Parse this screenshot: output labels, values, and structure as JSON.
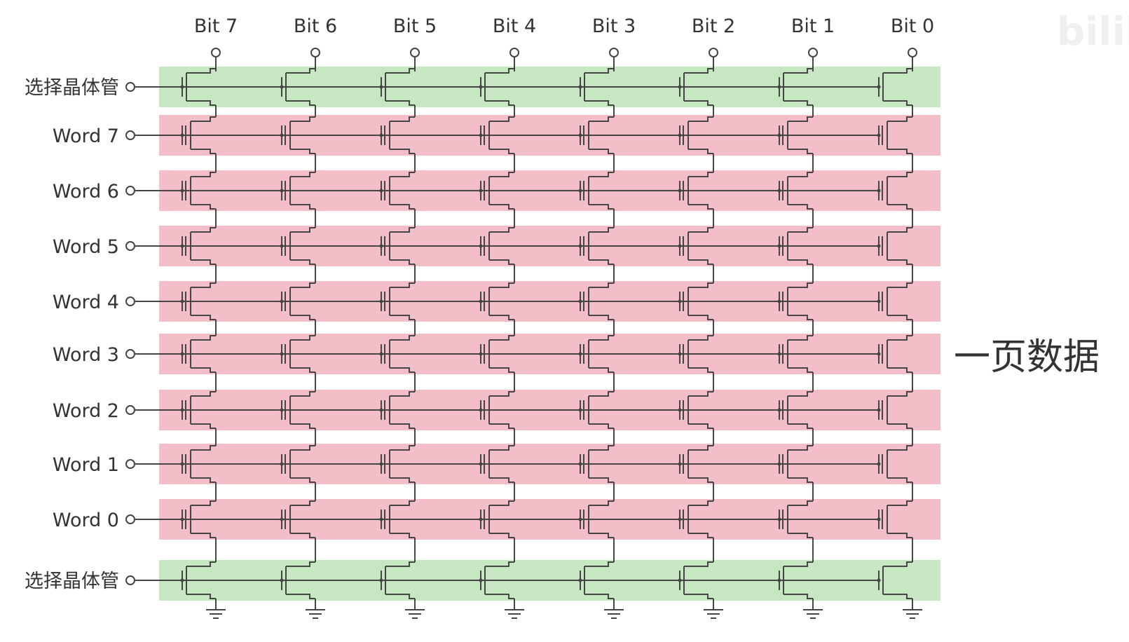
{
  "bit_lines": [
    "Bit 7",
    "Bit 6",
    "Bit 5",
    "Bit 4",
    "Bit 3",
    "Bit 2",
    "Bit 1",
    "Bit 0"
  ],
  "rows": [
    {
      "label": "选择晶体管",
      "kind": "select"
    },
    {
      "label": "Word 7",
      "kind": "word"
    },
    {
      "label": "Word 6",
      "kind": "word"
    },
    {
      "label": "Word 5",
      "kind": "word"
    },
    {
      "label": "Word 4",
      "kind": "word"
    },
    {
      "label": "Word 3",
      "kind": "word"
    },
    {
      "label": "Word 2",
      "kind": "word"
    },
    {
      "label": "Word 1",
      "kind": "word"
    },
    {
      "label": "Word 0",
      "kind": "word"
    },
    {
      "label": "选择晶体管",
      "kind": "select"
    }
  ],
  "side_label": "一页数据",
  "watermark": "bilibili",
  "colors": {
    "select_band": "#c7e6c2",
    "word_band": "#f3bec7",
    "wire": "#454545",
    "text": "#333333"
  }
}
